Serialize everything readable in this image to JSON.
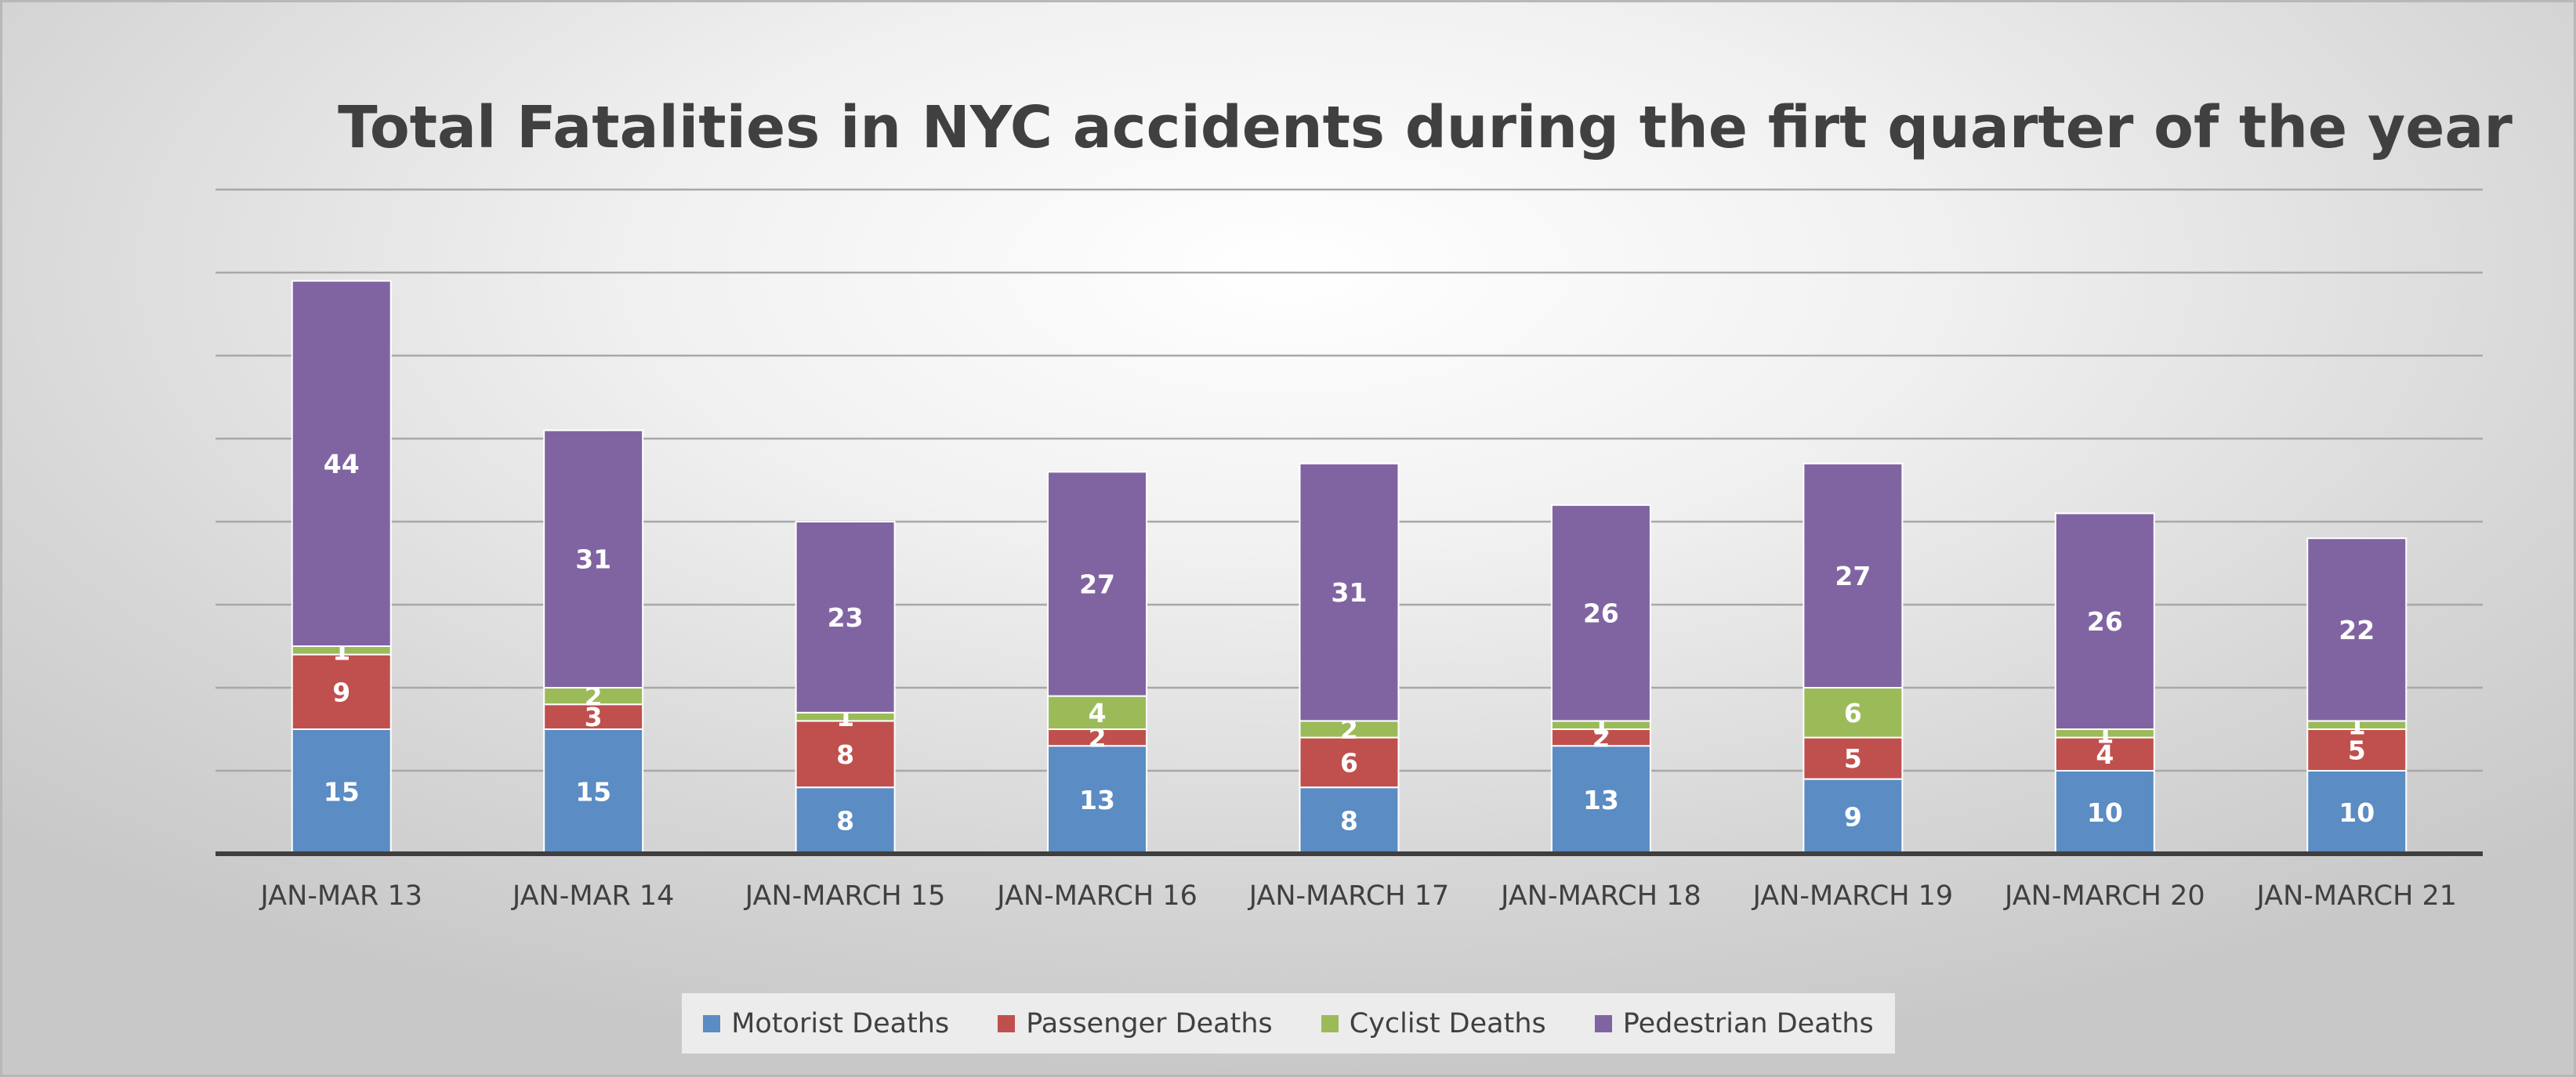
{
  "chart_data": {
    "type": "bar",
    "stacked": true,
    "title": "Total Fatalities in NYC accidents during the firt quarter of the year",
    "categories": [
      "JAN-MAR 13",
      "JAN-MAR 14",
      "JAN-MARCH 15",
      "JAN-MARCH 16",
      "JAN-MARCH 17",
      "JAN-MARCH 18",
      "JAN-MARCH 19",
      "JAN-MARCH 20",
      "JAN-MARCH 21"
    ],
    "series": [
      {
        "name": "Motorist Deaths",
        "color": "#5b8cc3",
        "values": [
          15,
          15,
          8,
          13,
          8,
          13,
          9,
          10,
          10
        ]
      },
      {
        "name": "Passenger Deaths",
        "color": "#c0504d",
        "values": [
          9,
          3,
          8,
          2,
          6,
          2,
          5,
          4,
          5
        ]
      },
      {
        "name": "Cyclist Deaths",
        "color": "#9bbb59",
        "values": [
          1,
          2,
          1,
          4,
          2,
          1,
          6,
          1,
          1
        ]
      },
      {
        "name": "Pedestrian Deaths",
        "color": "#8064a2",
        "values": [
          44,
          31,
          23,
          27,
          31,
          26,
          27,
          26,
          22
        ]
      }
    ],
    "ylim": [
      0,
      80
    ],
    "grid": true,
    "legend_position": "bottom"
  }
}
